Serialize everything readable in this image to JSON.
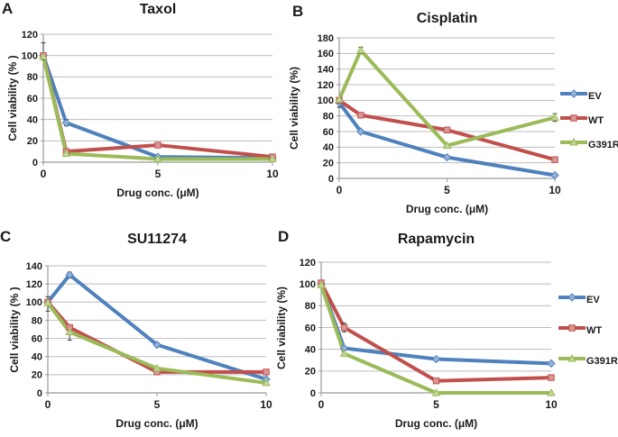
{
  "figure_title": "Drug sensitivity line charts",
  "colors": {
    "EV": "#4F81BD",
    "WT": "#C0504D",
    "G391R": "#9BBB59",
    "marker_fill": {
      "EV": "#95B3D7",
      "WT": "#D99694",
      "G391R": "#C3D69B"
    },
    "gridline": "#bdbdbd",
    "axis": "#9a9a9a",
    "error_bar": "#3f3f3f",
    "text": "#1a1a1a"
  },
  "markers": {
    "EV": "diamond",
    "WT": "square",
    "G391R": "triangle"
  },
  "chart_data": [
    {
      "type": "line",
      "panel_label": "A",
      "title": "Taxol",
      "xlabel": "Drug conc. (μM)",
      "ylabel": "Cell viability (% )",
      "x": [
        0,
        1,
        5,
        10
      ],
      "x_ticks": [
        0,
        5,
        10
      ],
      "xlim": [
        0,
        10
      ],
      "ylim": [
        0,
        120
      ],
      "y_ticks": [
        0,
        20,
        40,
        60,
        80,
        100,
        120
      ],
      "grid": true,
      "legend": false,
      "series": [
        {
          "name": "EV",
          "values": [
            100,
            37,
            5,
            4
          ]
        },
        {
          "name": "WT",
          "values": [
            100,
            10,
            16,
            5
          ]
        },
        {
          "name": "G391R",
          "values": [
            99,
            8,
            3,
            3
          ]
        }
      ],
      "error_bars": [
        {
          "series": "EV",
          "x": 0,
          "plus": 12,
          "minus": 4
        },
        {
          "series": "EV",
          "x": 1,
          "plus": 3,
          "minus": 3
        }
      ]
    },
    {
      "type": "line",
      "panel_label": "B",
      "title": "Cisplatin",
      "xlabel": "Drug conc. (μM)",
      "ylabel": "Cell viability (%)",
      "x": [
        0,
        1,
        5,
        10
      ],
      "x_ticks": [
        0,
        5,
        10
      ],
      "xlim": [
        0,
        10
      ],
      "ylim": [
        0,
        180
      ],
      "y_ticks": [
        0,
        20,
        40,
        60,
        80,
        100,
        120,
        140,
        160,
        180
      ],
      "grid": true,
      "legend": true,
      "series": [
        {
          "name": "EV",
          "values": [
            97,
            60,
            27,
            4
          ]
        },
        {
          "name": "WT",
          "values": [
            100,
            81,
            62,
            24
          ]
        },
        {
          "name": "G391R",
          "values": [
            101,
            164,
            42,
            78
          ]
        }
      ],
      "error_bars": [
        {
          "series": "EV",
          "x": 0,
          "plus": 2,
          "minus": 6
        },
        {
          "series": "G391R",
          "x": 1,
          "plus": 4,
          "minus": 4
        },
        {
          "series": "WT",
          "x": 10,
          "plus": 3,
          "minus": 3
        },
        {
          "series": "G391R",
          "x": 10,
          "plus": 5,
          "minus": 5
        }
      ]
    },
    {
      "type": "line",
      "panel_label": "C",
      "title": "SU11274",
      "xlabel": "Drug conc. (μM)",
      "ylabel": "Cell viability (% )",
      "x": [
        0,
        1,
        5,
        10
      ],
      "x_ticks": [
        0,
        5,
        10
      ],
      "xlim": [
        0,
        10
      ],
      "ylim": [
        0,
        140
      ],
      "y_ticks": [
        0,
        20,
        40,
        60,
        80,
        100,
        120,
        140
      ],
      "grid": true,
      "legend": false,
      "series": [
        {
          "name": "EV",
          "values": [
            100,
            130,
            53,
            15
          ]
        },
        {
          "name": "WT",
          "values": [
            100,
            72,
            23,
            23
          ]
        },
        {
          "name": "G391R",
          "values": [
            99,
            67,
            27,
            11
          ]
        }
      ],
      "error_bars": [
        {
          "series": "WT",
          "x": 0,
          "plus": 6,
          "minus": 10
        },
        {
          "series": "EV",
          "x": 1,
          "plus": 3,
          "minus": 3
        },
        {
          "series": "G391R",
          "x": 1,
          "plus": 3,
          "minus": 9
        },
        {
          "series": "EV",
          "x": 5,
          "plus": 2,
          "minus": 2
        }
      ]
    },
    {
      "type": "line",
      "panel_label": "D",
      "title": "Rapamycin",
      "xlabel": "Drug conc. (μM)",
      "ylabel": "Cell viability (%)",
      "x": [
        0,
        1,
        5,
        10
      ],
      "x_ticks": [
        0,
        5,
        10
      ],
      "xlim": [
        0,
        10
      ],
      "ylim": [
        0,
        120
      ],
      "y_ticks": [
        0,
        20,
        40,
        60,
        80,
        100,
        120
      ],
      "grid": true,
      "legend": true,
      "series": [
        {
          "name": "EV",
          "values": [
            100,
            41,
            31,
            27
          ]
        },
        {
          "name": "WT",
          "values": [
            101,
            60,
            11,
            14
          ]
        },
        {
          "name": "G391R",
          "values": [
            99,
            36,
            0,
            0
          ]
        }
      ],
      "error_bars": [
        {
          "series": "WT",
          "x": 1,
          "plus": 4,
          "minus": 4
        },
        {
          "series": "G391R",
          "x": 0,
          "plus": 2,
          "minus": 2
        }
      ]
    }
  ]
}
